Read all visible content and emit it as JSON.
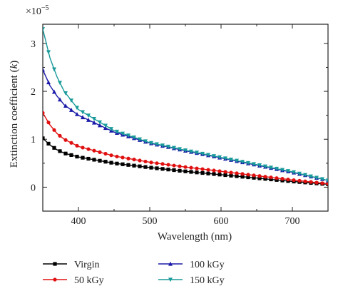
{
  "chart_data": {
    "type": "line",
    "xlabel": "Wavelength (nm)",
    "ylabel_main": "Extinction coefficient (",
    "ylabel_italic": "k",
    "ylabel_close": ")",
    "multiplier_base": "×10",
    "multiplier_exp": "−5",
    "xlim": [
      350,
      750
    ],
    "ylim": [
      -0.5,
      3.4
    ],
    "xticks": [
      400,
      500,
      600,
      700
    ],
    "yticks": [
      0,
      1,
      2,
      3
    ],
    "xtick_labels": [
      "400",
      "500",
      "600",
      "700"
    ],
    "ytick_labels": [
      "0",
      "1",
      "2",
      "3"
    ],
    "legend_position": "bottom",
    "series": [
      {
        "name": "Virgin",
        "color": "#000000",
        "marker": "square",
        "x": [
          350,
          360,
          370,
          380,
          400,
          450,
          500,
          550,
          600,
          650,
          700,
          750
        ],
        "y": [
          1.02,
          0.88,
          0.78,
          0.71,
          0.63,
          0.5,
          0.41,
          0.33,
          0.26,
          0.19,
          0.12,
          0.06
        ]
      },
      {
        "name": "50 kGy",
        "color": "#e01010",
        "marker": "circle",
        "x": [
          350,
          360,
          370,
          380,
          400,
          450,
          500,
          550,
          600,
          650,
          700,
          750
        ],
        "y": [
          1.55,
          1.3,
          1.12,
          1.0,
          0.85,
          0.65,
          0.52,
          0.42,
          0.33,
          0.24,
          0.15,
          0.07
        ]
      },
      {
        "name": "100 kGy",
        "color": "#1a1aa8",
        "marker": "triangle-up",
        "x": [
          350,
          360,
          370,
          380,
          400,
          450,
          500,
          550,
          600,
          650,
          700,
          750
        ],
        "y": [
          2.45,
          2.12,
          1.9,
          1.72,
          1.5,
          1.15,
          0.92,
          0.76,
          0.61,
          0.46,
          0.31,
          0.14
        ]
      },
      {
        "name": "150 kGy",
        "color": "#1a9a9a",
        "marker": "triangle-down",
        "x": [
          350,
          360,
          370,
          380,
          400,
          450,
          500,
          550,
          600,
          650,
          700,
          750
        ],
        "y": [
          3.3,
          2.7,
          2.3,
          2.0,
          1.62,
          1.18,
          0.93,
          0.77,
          0.62,
          0.47,
          0.32,
          0.14
        ]
      }
    ]
  }
}
